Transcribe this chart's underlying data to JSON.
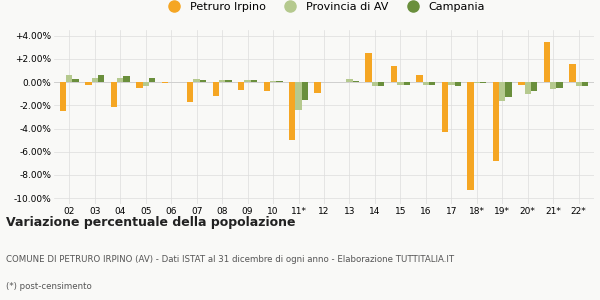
{
  "categories": [
    "02",
    "03",
    "04",
    "05",
    "06",
    "07",
    "08",
    "09",
    "10",
    "11*",
    "12",
    "13",
    "14",
    "15",
    "16",
    "17",
    "18*",
    "19*",
    "20*",
    "21*",
    "22*"
  ],
  "petruro": [
    -2.5,
    -0.2,
    -2.1,
    -0.5,
    -0.1,
    -1.7,
    -1.2,
    -0.7,
    -0.8,
    -5.0,
    -0.9,
    0.0,
    2.5,
    1.4,
    0.6,
    -4.3,
    -9.3,
    -6.8,
    -0.2,
    3.5,
    1.6
  ],
  "provincia": [
    0.6,
    0.4,
    0.4,
    -0.3,
    0.0,
    0.3,
    0.2,
    0.2,
    0.1,
    -2.4,
    0.0,
    0.3,
    -0.3,
    -0.2,
    -0.2,
    -0.2,
    -0.1,
    -1.6,
    -1.0,
    -0.6,
    -0.3
  ],
  "campania": [
    0.3,
    0.6,
    0.5,
    0.4,
    0.0,
    0.2,
    0.2,
    0.2,
    0.1,
    -1.5,
    0.0,
    0.1,
    -0.3,
    -0.2,
    -0.2,
    -0.3,
    -0.1,
    -1.3,
    -0.8,
    -0.5,
    -0.3
  ],
  "color_petruro": "#f5a623",
  "color_provincia": "#b5c98e",
  "color_campania": "#6a8f3c",
  "ylim": [
    -10.5,
    4.5
  ],
  "yticks": [
    -10.0,
    -8.0,
    -6.0,
    -4.0,
    -2.0,
    0.0,
    2.0,
    4.0
  ],
  "ytick_labels": [
    "-10.00%",
    "-8.00%",
    "-6.00%",
    "-4.00%",
    "-2.00%",
    "0.00%",
    "+2.00%",
    "+4.00%"
  ],
  "legend_labels": [
    "Petruro Irpino",
    "Provincia di AV",
    "Campania"
  ],
  "title": "Variazione percentuale della popolazione",
  "footnote1": "COMUNE DI PETRURO IRPINO (AV) - Dati ISTAT al 31 dicembre di ogni anno - Elaborazione TUTTITALIA.IT",
  "footnote2": "(*) post-censimento",
  "bg_color": "#f9f9f7"
}
